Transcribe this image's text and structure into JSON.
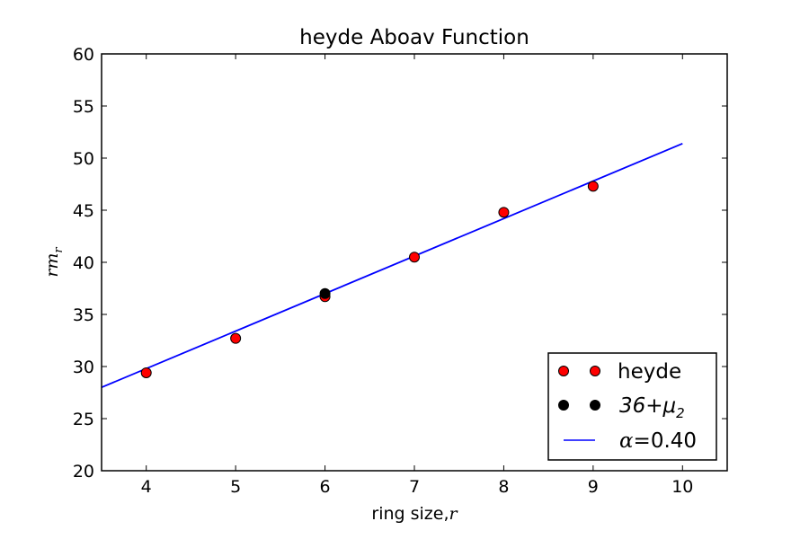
{
  "chart_data": {
    "type": "scatter",
    "title": "heyde Aboav Function",
    "xlabel": "ring size,",
    "xlabel_math": "r",
    "ylabel_math": "rm",
    "ylabel_math_sub": "r",
    "xlim": [
      3.5,
      10.5
    ],
    "ylim": [
      20,
      60
    ],
    "xticks": [
      4,
      5,
      6,
      7,
      8,
      9,
      10
    ],
    "yticks": [
      20,
      25,
      30,
      35,
      40,
      45,
      50,
      55,
      60
    ],
    "grid": false,
    "legend_position": "lower-right",
    "series": [
      {
        "name": "heyde",
        "kind": "markers",
        "color": "#ff0000",
        "x": [
          4,
          5,
          6,
          7,
          8,
          9
        ],
        "y": [
          29.4,
          32.7,
          36.7,
          40.5,
          44.8,
          47.3
        ]
      },
      {
        "name_math": "36+μ",
        "name_math_sub": "2",
        "kind": "markers",
        "color": "#000000",
        "x": [
          6
        ],
        "y": [
          37.0
        ]
      },
      {
        "name_math": "α",
        "name_suffix": "=0.40",
        "kind": "line",
        "color": "#0000ff",
        "x": [
          3.5,
          10
        ],
        "y": [
          28.0,
          51.4
        ]
      }
    ]
  }
}
